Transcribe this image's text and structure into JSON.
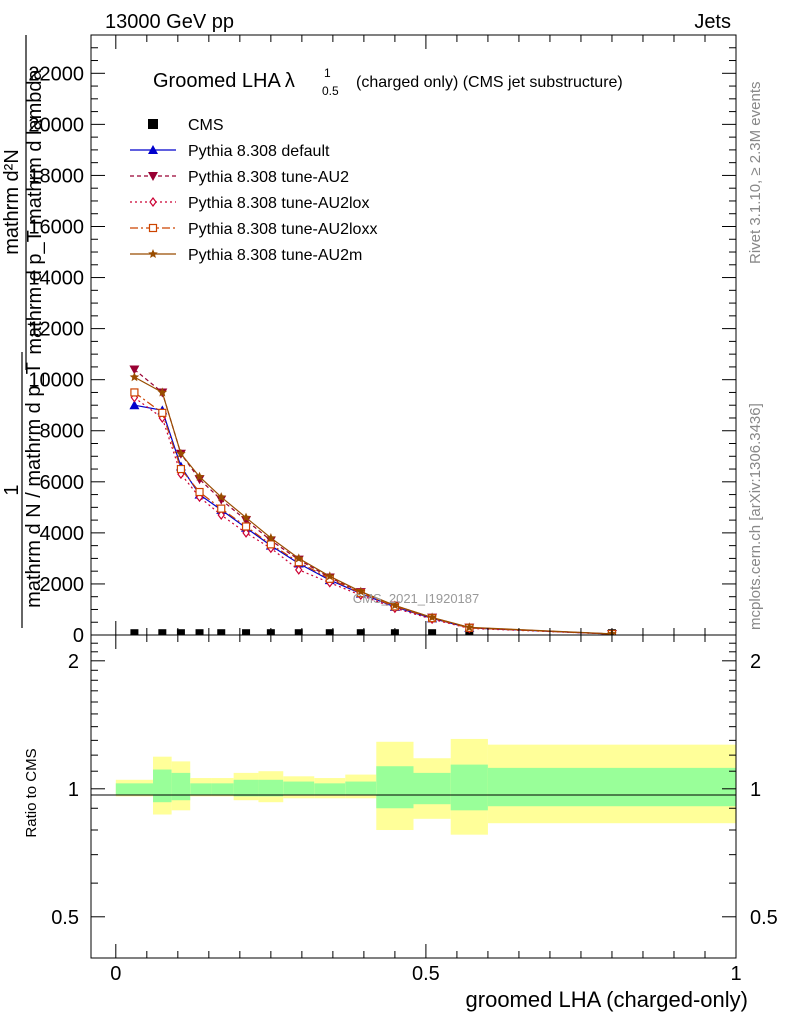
{
  "header": {
    "left": "13000 GeV pp",
    "right": "Jets"
  },
  "plot_title": {
    "main": "Groomed LHA",
    "symbol": "λ",
    "sup": "1",
    "sub": "0.5",
    "rest": "(charged only) (CMS jet substructure)"
  },
  "side_labels": {
    "rivet": "Rivet 3.1.10, ≥ 2.3M events",
    "mcplots": "mcplots.cern.ch [arXiv:1306.3436]"
  },
  "watermark": "CMS_2021_I1920187",
  "ylabel_top": {
    "numerator": "mathrm d²N",
    "denominator": "mathrm d p_T mathrm d lambda",
    "prefix_num": "1",
    "prefix_den": "mathrm d N / mathrm d p_T"
  },
  "ylabel_bottom": "Ratio to CMS",
  "xlabel": "groomed LHA (charged-only)",
  "colors": {
    "default": "#0000cc",
    "au2": "#990033",
    "au2lox": "#cc0033",
    "au2loxx": "#cc4400",
    "au2m": "#994c00",
    "band_inner": "#99ff99",
    "band_outer": "#ffff99"
  },
  "chart_data": [
    {
      "type": "line",
      "panel": "main",
      "xlim": [
        -0.04,
        1.0
      ],
      "ylim": [
        0,
        23500
      ],
      "x_ticks": [],
      "y_ticks": [
        0,
        2000,
        4000,
        6000,
        8000,
        10000,
        12000,
        14000,
        16000,
        18000,
        20000,
        22000
      ],
      "y_tick_labels": [
        "0",
        "2000",
        "4000",
        "6000",
        "8000",
        "10000",
        "12000",
        "14000",
        "16000",
        "18000",
        "20000",
        "22000"
      ],
      "legend_position": "top-left",
      "x": [
        0.03,
        0.075,
        0.105,
        0.135,
        0.17,
        0.21,
        0.25,
        0.295,
        0.345,
        0.395,
        0.45,
        0.51,
        0.57,
        0.8
      ],
      "series": [
        {
          "name": "CMS",
          "marker": "square",
          "values": [
            70,
            70,
            70,
            70,
            70,
            70,
            70,
            70,
            70,
            70,
            70,
            70,
            70,
            70
          ]
        },
        {
          "name": "Pythia 8.308 default",
          "marker": "triangle-up",
          "values": [
            9000,
            8800,
            6600,
            5500,
            4900,
            4200,
            3500,
            2800,
            2150,
            1620,
            1100,
            650,
            280,
            40
          ]
        },
        {
          "name": "Pythia 8.308 tune-AU2",
          "marker": "triangle-down",
          "values": [
            10400,
            9500,
            7100,
            6100,
            5300,
            4500,
            3700,
            2950,
            2250,
            1680,
            1150,
            680,
            290,
            40
          ]
        },
        {
          "name": "Pythia 8.308 tune-AU2lox",
          "marker": "diamond-open",
          "values": [
            9300,
            8500,
            6300,
            5400,
            4700,
            4000,
            3400,
            2550,
            2050,
            1560,
            1050,
            620,
            260,
            40
          ]
        },
        {
          "name": "Pythia 8.308 tune-AU2loxx",
          "marker": "square-open",
          "values": [
            9500,
            8700,
            6500,
            5600,
            4950,
            4250,
            3550,
            2850,
            2200,
            1640,
            1120,
            660,
            280,
            40
          ]
        },
        {
          "name": "Pythia 8.308 tune-AU2m",
          "marker": "star",
          "values": [
            10100,
            9500,
            7100,
            6200,
            5400,
            4600,
            3800,
            3000,
            2300,
            1700,
            1160,
            690,
            300,
            45
          ]
        }
      ]
    },
    {
      "type": "area",
      "panel": "ratio",
      "xlim": [
        -0.04,
        1.0
      ],
      "ylim": [
        0.4,
        2.3
      ],
      "y_scale": "log",
      "x_ticks": [
        0,
        0.5,
        1
      ],
      "x_tick_labels": [
        "0",
        "0.5",
        "1"
      ],
      "y_ticks": [
        0.5,
        1,
        2
      ],
      "y_tick_labels": [
        "0.5",
        "1",
        "2"
      ],
      "bins": [
        {
          "lo": 0.0,
          "hi": 0.06,
          "inner": [
            0.97,
            1.03
          ],
          "outer": [
            0.96,
            1.05
          ]
        },
        {
          "lo": 0.06,
          "hi": 0.09,
          "inner": [
            0.93,
            1.11
          ],
          "outer": [
            0.87,
            1.19
          ]
        },
        {
          "lo": 0.09,
          "hi": 0.12,
          "inner": [
            0.94,
            1.09
          ],
          "outer": [
            0.89,
            1.16
          ]
        },
        {
          "lo": 0.12,
          "hi": 0.155,
          "inner": [
            0.97,
            1.03
          ],
          "outer": [
            0.96,
            1.06
          ]
        },
        {
          "lo": 0.155,
          "hi": 0.19,
          "inner": [
            0.97,
            1.03
          ],
          "outer": [
            0.96,
            1.06
          ]
        },
        {
          "lo": 0.19,
          "hi": 0.23,
          "inner": [
            0.96,
            1.05
          ],
          "outer": [
            0.94,
            1.09
          ]
        },
        {
          "lo": 0.23,
          "hi": 0.27,
          "inner": [
            0.96,
            1.05
          ],
          "outer": [
            0.93,
            1.1
          ]
        },
        {
          "lo": 0.27,
          "hi": 0.32,
          "inner": [
            0.97,
            1.04
          ],
          "outer": [
            0.95,
            1.07
          ]
        },
        {
          "lo": 0.32,
          "hi": 0.37,
          "inner": [
            0.97,
            1.03
          ],
          "outer": [
            0.95,
            1.06
          ]
        },
        {
          "lo": 0.37,
          "hi": 0.42,
          "inner": [
            0.97,
            1.04
          ],
          "outer": [
            0.95,
            1.08
          ]
        },
        {
          "lo": 0.42,
          "hi": 0.48,
          "inner": [
            0.9,
            1.13
          ],
          "outer": [
            0.8,
            1.29
          ]
        },
        {
          "lo": 0.48,
          "hi": 0.54,
          "inner": [
            0.92,
            1.09
          ],
          "outer": [
            0.85,
            1.18
          ]
        },
        {
          "lo": 0.54,
          "hi": 0.6,
          "inner": [
            0.89,
            1.14
          ],
          "outer": [
            0.78,
            1.31
          ]
        },
        {
          "lo": 0.6,
          "hi": 1.0,
          "inner": [
            0.91,
            1.12
          ],
          "outer": [
            0.83,
            1.27
          ]
        }
      ]
    }
  ]
}
